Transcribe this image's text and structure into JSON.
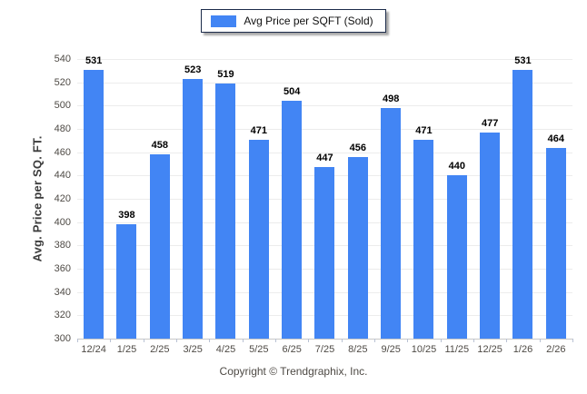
{
  "legend": {
    "label": "Avg Price per SQFT (Sold)"
  },
  "y_axis": {
    "title": "Avg. Price per SQ. FT."
  },
  "footer": {
    "copyright": "Copyright © Trendgraphix, Inc."
  },
  "colors": {
    "bar": "#4285F4",
    "legend_border": "#1C2B4A",
    "grid": "#ECECEC",
    "axis_line": "#C8C8C8",
    "tick": "#B9C2D4",
    "axis_text": "#4E4A45",
    "value_text": "#000000"
  },
  "chart_data": {
    "type": "bar",
    "title": "Avg Price per SQFT (Sold)",
    "categories": [
      "12/24",
      "1/25",
      "2/25",
      "3/25",
      "4/25",
      "5/25",
      "6/25",
      "7/25",
      "8/25",
      "9/25",
      "10/25",
      "11/25",
      "12/25",
      "1/26",
      "2/26"
    ],
    "values": [
      531,
      398,
      458,
      523,
      519,
      471,
      504,
      447,
      456,
      498,
      471,
      440,
      477,
      531,
      464
    ],
    "xlabel": "",
    "ylabel": "Avg. Price per SQ. FT.",
    "ylim": [
      300,
      540
    ],
    "ytick_step": 20,
    "grid": true,
    "legend_position": "top"
  }
}
